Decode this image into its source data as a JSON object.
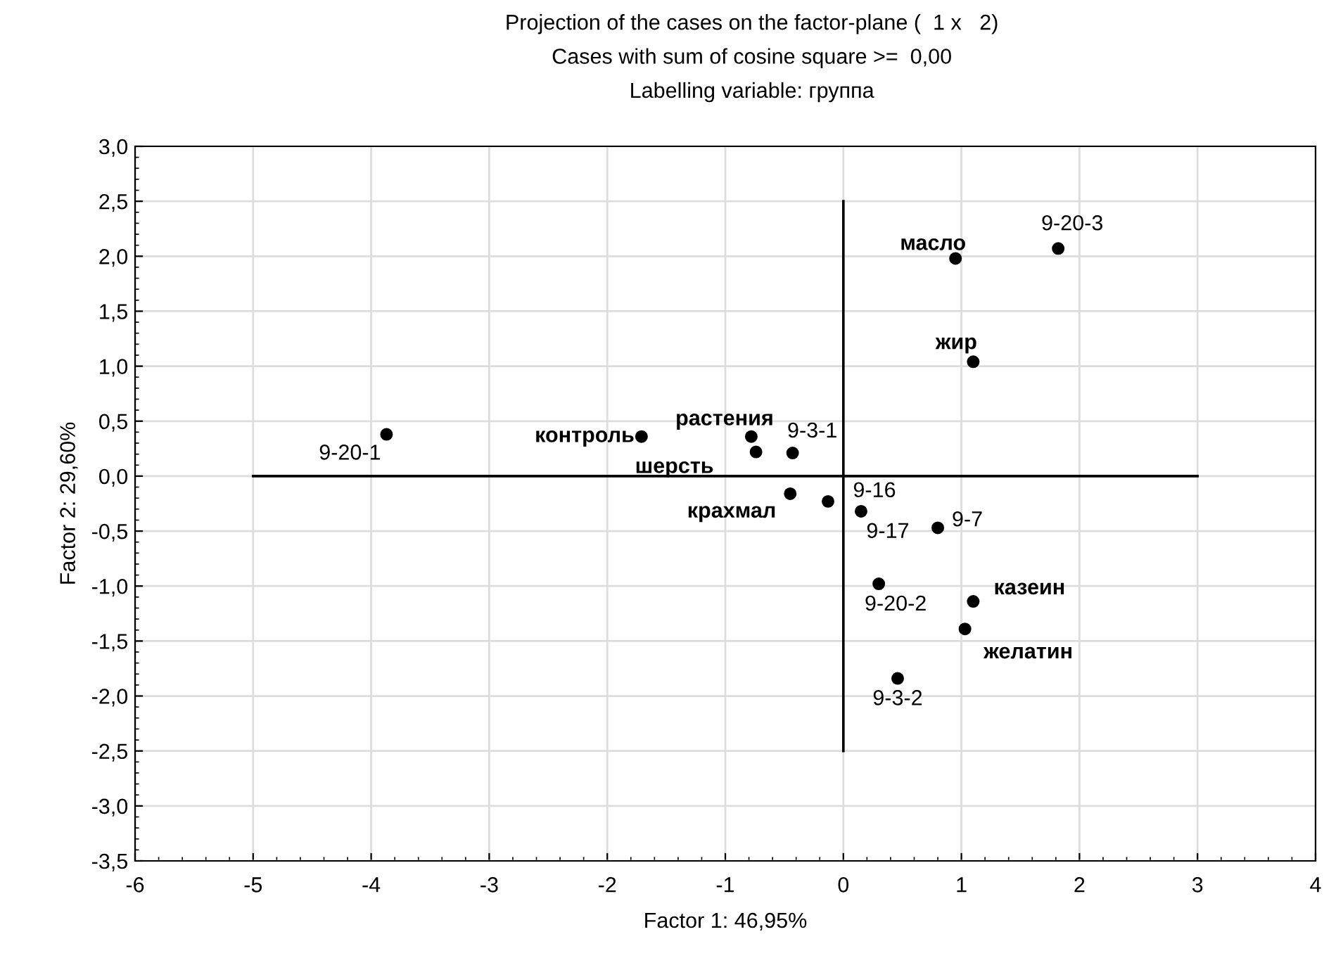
{
  "chart_data": {
    "type": "scatter",
    "title": "Projection of the cases on the factor-plane (  1 x   2)",
    "subtitle": "Cases with sum of cosine square >=  0,00\nLabelling variable: группа",
    "xlabel": "Factor 1: 46,95%",
    "ylabel": "Factor 2: 29,60%",
    "xlim": [
      -6,
      4
    ],
    "xticks": [
      -6,
      -5,
      -4,
      -3,
      -2,
      -1,
      0,
      1,
      2,
      3,
      4
    ],
    "ylim": [
      -3.5,
      3.0
    ],
    "yticks": [
      {
        "value": -3.5,
        "label": "-3,5"
      },
      {
        "value": -3.0,
        "label": "-3,0"
      },
      {
        "value": -2.5,
        "label": "-2,5"
      },
      {
        "value": -2.0,
        "label": "-2,0"
      },
      {
        "value": -1.5,
        "label": "-1,5"
      },
      {
        "value": -1.0,
        "label": "-1,0"
      },
      {
        "value": -0.5,
        "label": "-0,5"
      },
      {
        "value": 0.0,
        "label": "0,0"
      },
      {
        "value": 0.5,
        "label": "0,5"
      },
      {
        "value": 1.0,
        "label": "1,0"
      },
      {
        "value": 1.5,
        "label": "1,5"
      },
      {
        "value": 2.0,
        "label": "2,0"
      },
      {
        "value": 2.5,
        "label": "2,5"
      },
      {
        "value": 3.0,
        "label": "3,0"
      }
    ],
    "grid": true,
    "marker": "circle",
    "legend": false,
    "series": [
      {
        "type": "line",
        "color": "#000000",
        "marker": "none",
        "x": [
          -5,
          3
        ],
        "values": [
          0,
          0
        ]
      },
      {
        "type": "line",
        "color": "#000000",
        "marker": "none",
        "x": [
          0,
          0
        ],
        "values": [
          -2.5,
          2.5
        ]
      },
      {
        "color": "#000000",
        "x": [
          0.95,
          1.1,
          -1.71,
          -0.78,
          -0.74,
          -0.45,
          1.1,
          1.03
        ],
        "values": [
          1.98,
          1.04,
          0.36,
          0.36,
          0.22,
          -0.16,
          -1.14,
          -1.39
        ],
        "value_labels": [
          "масло",
          "жир",
          "контроль",
          "растения",
          "шерсть",
          "крахмал",
          "казеин",
          "желатин"
        ]
      },
      {
        "color": "#000000",
        "x": [
          1.82,
          -3.87,
          -0.43,
          -0.13,
          0.15,
          0.8,
          0.3,
          0.46
        ],
        "values": [
          2.07,
          0.38,
          0.21,
          -0.23,
          -0.32,
          -0.47,
          -0.98,
          -1.84
        ],
        "value_labels": [
          "9-20-3",
          "9-20-1",
          "9-3-1",
          "9-16",
          "9-17",
          "9-7",
          "9-20-2",
          "9-3-2"
        ]
      }
    ]
  }
}
